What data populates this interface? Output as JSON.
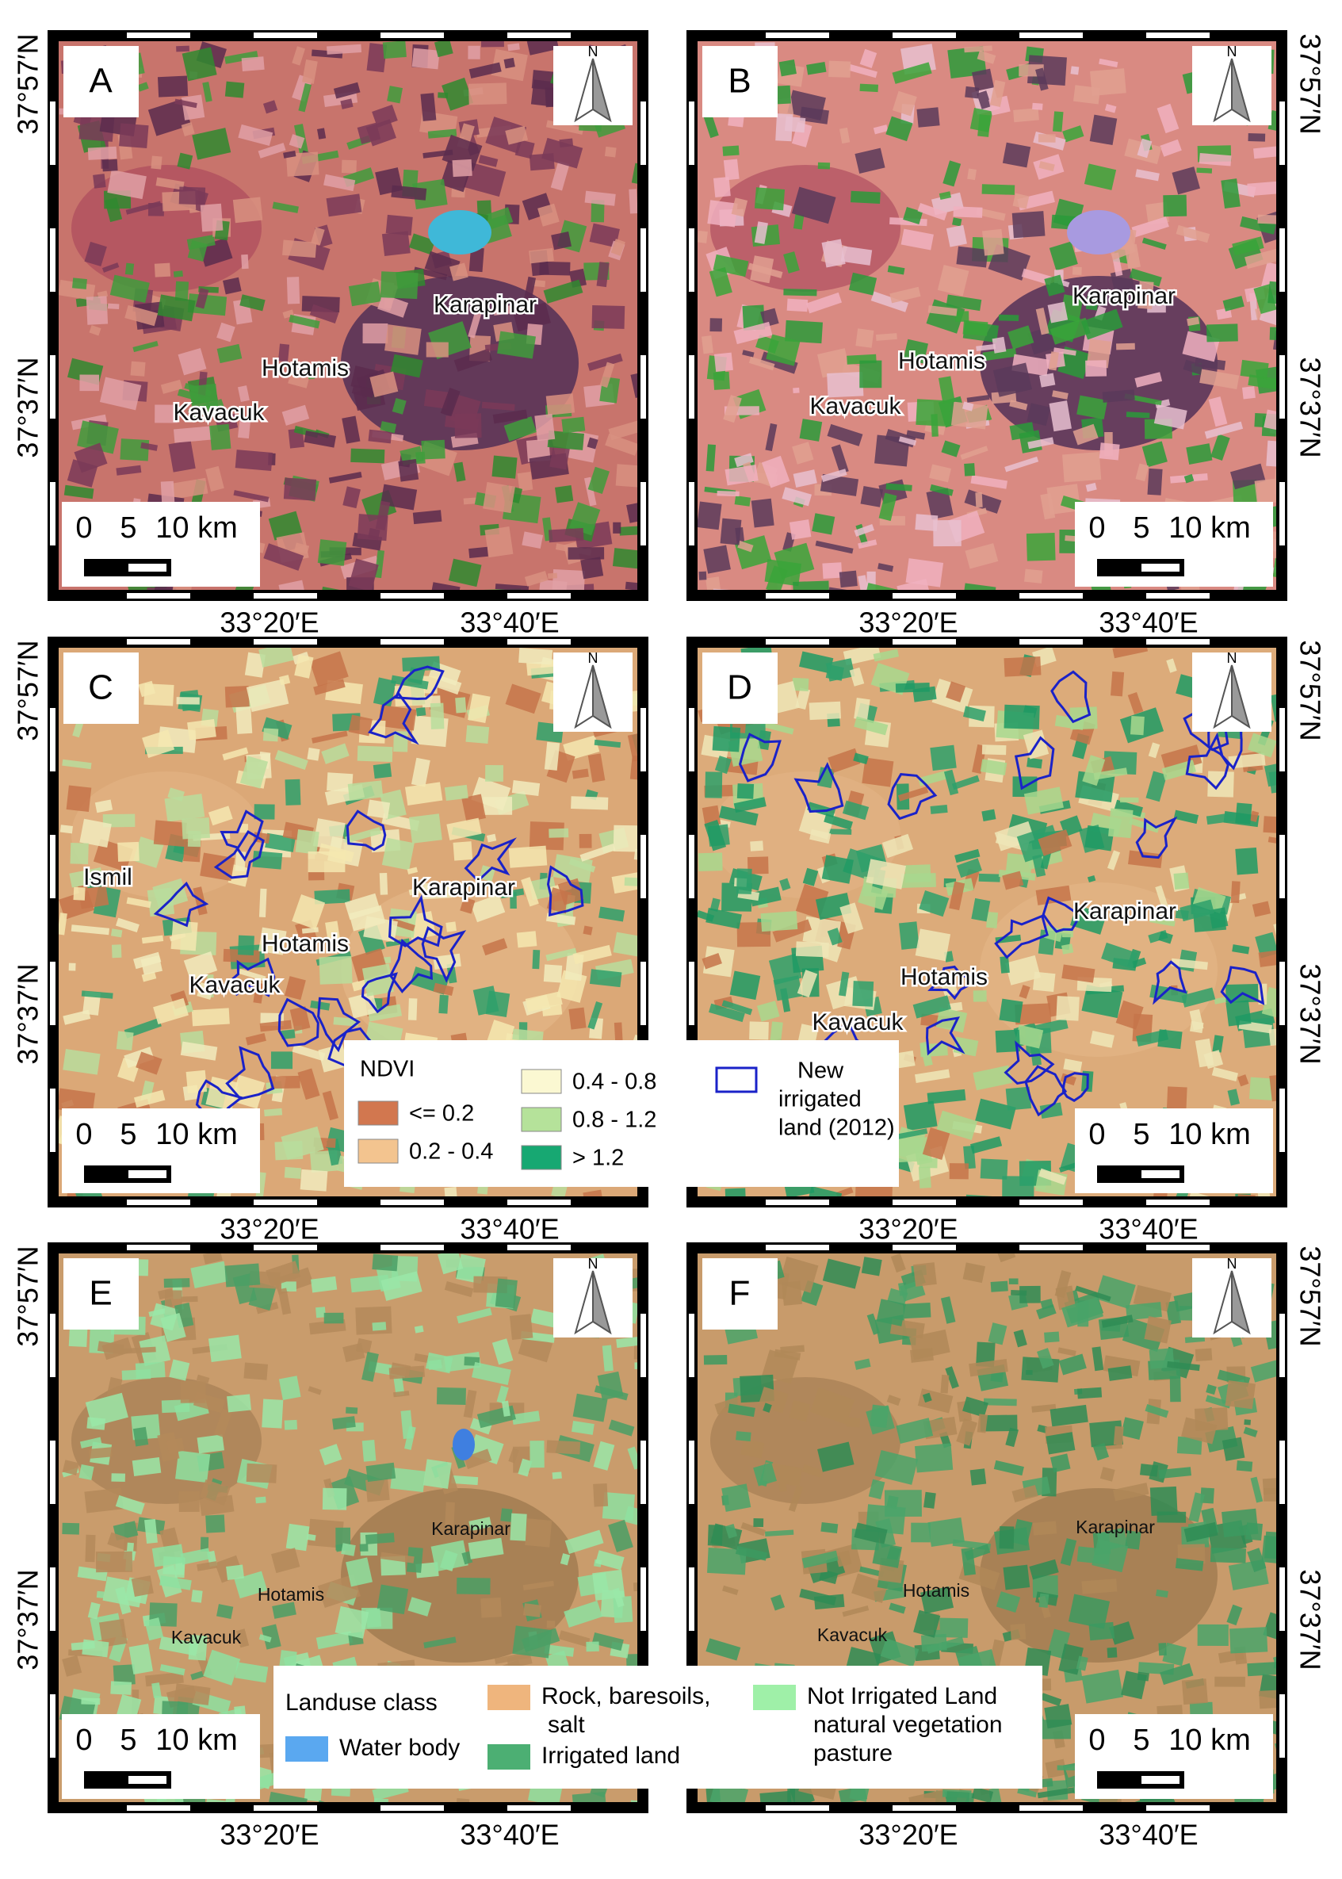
{
  "panels": [
    {
      "letter": "A",
      "places": [
        "Karapinar",
        "Hotamis",
        "Kavacuk"
      ]
    },
    {
      "letter": "B",
      "places": [
        "Karapinar",
        "Hotamis",
        "Kavacuk"
      ]
    },
    {
      "letter": "C",
      "places": [
        "Ismil",
        "Karapinar",
        "Hotamis",
        "Kavacuk"
      ]
    },
    {
      "letter": "D",
      "places": [
        "Karapinar",
        "Hotamis",
        "Kavacuk"
      ]
    },
    {
      "letter": "E",
      "places": [
        "Karapinar",
        "Hotamis",
        "Kavacuk"
      ]
    },
    {
      "letter": "F",
      "places": [
        "Karapinar",
        "Hotamis",
        "Kavacuk"
      ]
    }
  ],
  "north": "N",
  "scale_labels": [
    "0",
    "5",
    "10 km"
  ],
  "lat_labels": [
    "37°57′N",
    "37°37′N"
  ],
  "lon_labels": [
    "33°20′E",
    "33°40′E"
  ],
  "ndvi_legend": {
    "title": "NDVI",
    "items": [
      {
        "label": "<= 0.2",
        "color": "#d2774f"
      },
      {
        "label": "0.2 - 0.4",
        "color": "#f3c48f"
      },
      {
        "label": "0.4 - 0.8",
        "color": "#fbf8d2"
      },
      {
        "label": "0.8 - 1.2",
        "color": "#b5e29a"
      },
      {
        "label": "> 1.2",
        "color": "#17a872"
      }
    ],
    "outline": {
      "lines": [
        "New",
        "irrigated",
        "land (2012)"
      ],
      "color": "#1a22c8"
    }
  },
  "landuse_legend": {
    "title": "Landuse class",
    "items": [
      {
        "lines": [
          "Water body"
        ],
        "color": "#5aa8f0"
      },
      {
        "lines": [
          "Rock, baresoils,",
          "salt"
        ],
        "color": "#efb57d"
      },
      {
        "lines": [
          "Irrigated land"
        ],
        "color": "#4caf73"
      },
      {
        "lines": [
          "Not Irrigated Land",
          "natural vegetation",
          "pasture"
        ],
        "color": "#9ff0a8"
      }
    ]
  }
}
